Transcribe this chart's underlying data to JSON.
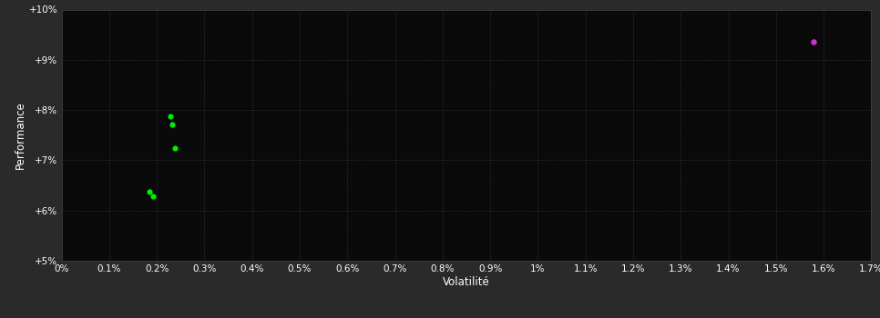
{
  "background_color": "#2a2a2a",
  "plot_bg_color": "#0a0a0a",
  "grid_color": "#3a3a3a",
  "text_color": "#ffffff",
  "xlabel": "Volatilité",
  "ylabel": "Performance",
  "xlim": [
    0.0,
    0.017
  ],
  "ylim": [
    0.05,
    0.1
  ],
  "xtick_vals": [
    0.0,
    0.001,
    0.002,
    0.003,
    0.004,
    0.005,
    0.006,
    0.007,
    0.008,
    0.009,
    0.01,
    0.011,
    0.012,
    0.013,
    0.014,
    0.015,
    0.016,
    0.017
  ],
  "xtick_labels": [
    "0%",
    "0.1%",
    "0.2%",
    "0.3%",
    "0.4%",
    "0.5%",
    "0.6%",
    "0.7%",
    "0.8%",
    "0.9%",
    "1%",
    "1.1%",
    "1.2%",
    "1.3%",
    "1.4%",
    "1.5%",
    "1.6%",
    "1.7%"
  ],
  "ytick_vals": [
    0.05,
    0.06,
    0.07,
    0.08,
    0.09,
    0.1
  ],
  "ytick_labels": [
    "+5%",
    "+6%",
    "+7%",
    "+8%",
    "+9%",
    "+10%"
  ],
  "green_points_x": [
    0.00185,
    0.00192,
    0.00238,
    0.00228,
    0.00233
  ],
  "green_points_y": [
    0.0638,
    0.0628,
    0.0725,
    0.0787,
    0.0772
  ],
  "magenta_point_x": [
    0.01578
  ],
  "magenta_point_y": [
    0.0935
  ],
  "green_color": "#00ee00",
  "magenta_color": "#cc33cc",
  "point_size": 20,
  "magenta_size": 22,
  "font_size_ticks": 7.5,
  "font_size_labels": 8.5
}
